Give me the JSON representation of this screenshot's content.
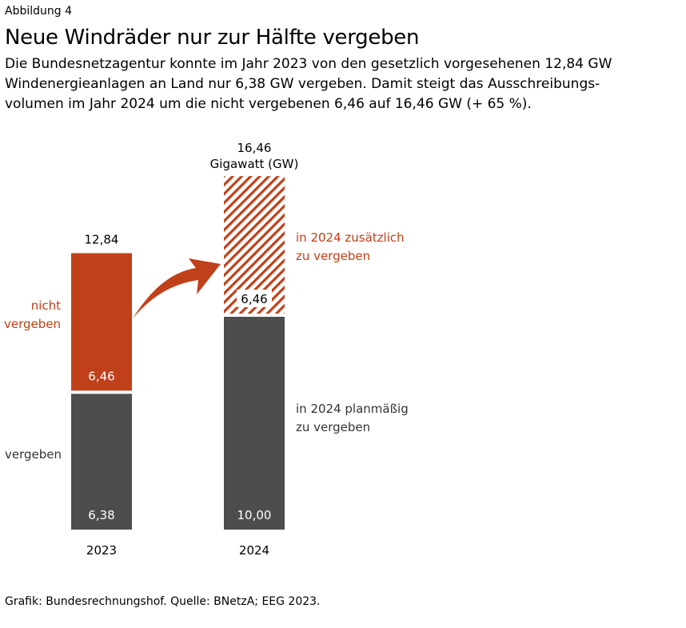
{
  "figure_label": "Abbildung 4",
  "title": "Neue Windräder nur zur Hälfte vergeben",
  "subtitle_lines": [
    "Die Bundesnetzagentur konnte im Jahr 2023 von den gesetzlich vorgesehenen 12,84 GW",
    "Windenergieanlagen an Land nur 6,38 GW vergeben. Damit steigt das Ausschreibungs-",
    "volumen im Jahr 2024 um die nicht vergebenen 6,46 auf 16,46 GW (+ 65 %)."
  ],
  "source": "Grafik: Bundesrechnungshof. Quelle: BNetzA; EEG 2023.",
  "colors": {
    "red": "#C0401A",
    "gray": "#4D4D4D"
  },
  "chart_data": {
    "type": "bar",
    "stacked": true,
    "categories": [
      "2023",
      "2024"
    ],
    "unit": "Gigawatt (GW)",
    "series": [
      {
        "name": "vergeben",
        "values": [
          6.38,
          10.0
        ],
        "labels": [
          "6,38",
          "10,00"
        ],
        "color": "#4D4D4D"
      },
      {
        "name": "nicht vergeben",
        "values": [
          6.46,
          6.46
        ],
        "labels": [
          "6,46",
          "6,46"
        ],
        "color": "#C0401A",
        "hatched": [
          false,
          true
        ]
      }
    ],
    "totals": [
      "12,84",
      "16,46"
    ],
    "annotations": {
      "left_red": [
        "nicht",
        "vergeben"
      ],
      "left_gray": [
        "vergeben"
      ],
      "right_red": [
        "in 2024 zusätzlich",
        "zu vergeben"
      ],
      "right_gray": [
        "in 2024 planmäßig",
        "zu vergeben"
      ]
    },
    "arrow": "from 2023 nicht vergeben to 2024 zusätzlich",
    "grid": false,
    "legend": "none"
  }
}
